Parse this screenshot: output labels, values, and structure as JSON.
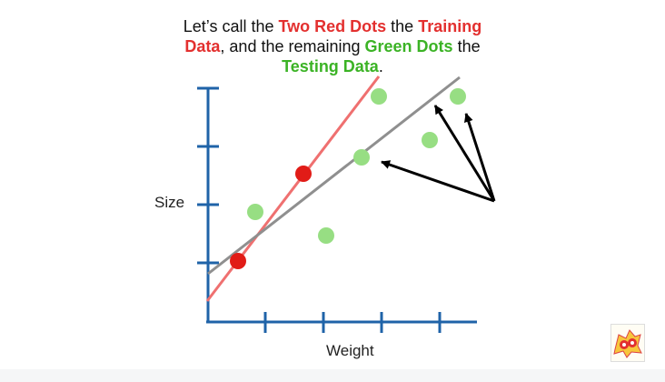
{
  "caption": {
    "line1": {
      "t1": "Let’s call the ",
      "t2": "Two Red Dots",
      "t3": " the ",
      "t4": "Training"
    },
    "line2": {
      "t1": "Data",
      "t2": ", and the remaining ",
      "t3": "Green Dots",
      "t4": " the"
    },
    "line3": {
      "t1": "Testing Data",
      "t2": "."
    }
  },
  "axes": {
    "ylabel": "Size",
    "xlabel": "Weight"
  },
  "colors": {
    "axis": "#1f63a8",
    "red_dot": "#e11c17",
    "green_dot": "#97de83",
    "red_line": "#ef7070",
    "gray_line": "#8f8f8f",
    "arrow": "#000000",
    "red_text": "#e3302f",
    "green_text": "#3bb325"
  },
  "logo": {
    "icon": "stat-quest-logo"
  }
}
